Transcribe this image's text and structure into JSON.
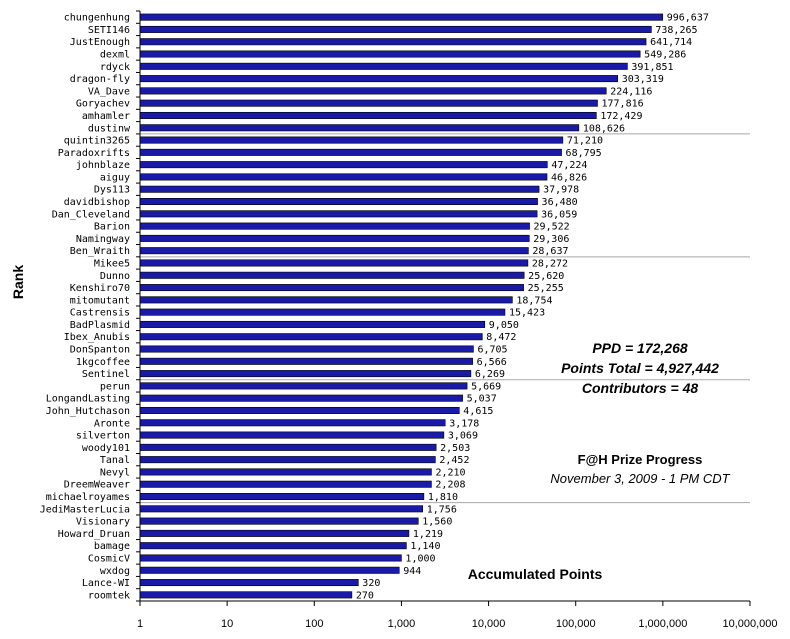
{
  "chart_data": {
    "type": "bar",
    "orientation": "horizontal",
    "title": "F@H Prize Progress",
    "subtitle": "November 3, 2009 - 1 PM CDT",
    "xlabel": "Accumulated Points",
    "ylabel": "Rank",
    "x_scale": "log",
    "xlim": [
      1,
      10000000
    ],
    "x_ticks": [
      1,
      10,
      100,
      1000,
      10000,
      100000,
      1000000,
      10000000
    ],
    "x_tick_labels": [
      "1",
      "10",
      "100",
      "1,000",
      "10,000",
      "100,000",
      "1,000,000",
      "10,000,000"
    ],
    "grid": "horizontal every 10 categories",
    "bar_color": "#1a1aa8",
    "categories": [
      "chungenhung",
      "SETI146",
      "JustEnough",
      "dexml",
      "rdyck",
      "dragon-fly",
      "VA_Dave",
      "Goryachev",
      "amhamler",
      "dustinw",
      "quintin3265",
      "Paradoxrifts",
      "johnblaze",
      "aiguy",
      "Dys113",
      "davidbishop",
      "Dan_Cleveland",
      "Barion",
      "Namingway",
      "Ben_Wraith",
      "Mikee5",
      "Dunno",
      "Kenshiro70",
      "mitomutant",
      "Castrensis",
      "BadPlasmid",
      "Ibex_Anubis",
      "DonSpanton",
      "1kgcoffee",
      "Sentinel",
      "perun",
      "LongandLasting",
      "John_Hutchason",
      "Aronte",
      "silverton",
      "woody101",
      "Tanal",
      "Nevyl",
      "DreemWeaver",
      "michaelroyames",
      "JediMasterLucia",
      "Visionary",
      "Howard_Druan",
      "bamage",
      "CosmicV",
      "wxdog",
      "Lance-WI",
      "roomtek"
    ],
    "values": [
      996637,
      738265,
      641714,
      549286,
      391851,
      303319,
      224116,
      177816,
      172429,
      108626,
      71210,
      68795,
      47224,
      46826,
      37978,
      36480,
      36059,
      29522,
      29306,
      28637,
      28272,
      25620,
      25255,
      18754,
      15423,
      9050,
      8472,
      6705,
      6566,
      6269,
      5669,
      5037,
      4615,
      3178,
      3069,
      2503,
      2452,
      2210,
      2208,
      1810,
      1756,
      1560,
      1219,
      1140,
      1000,
      944,
      320,
      270
    ],
    "value_labels": [
      "996,637",
      "738,265",
      "641,714",
      "549,286",
      "391,851",
      "303,319",
      "224,116",
      "177,816",
      "172,429",
      "108,626",
      "71,210",
      "68,795",
      "47,224",
      "46,826",
      "37,978",
      "36,480",
      "36,059",
      "29,522",
      "29,306",
      "28,637",
      "28,272",
      "25,620",
      "25,255",
      "18,754",
      "15,423",
      "9,050",
      "8,472",
      "6,705",
      "6,566",
      "6,269",
      "5,669",
      "5,037",
      "4,615",
      "3,178",
      "3,069",
      "2,503",
      "2,452",
      "2,210",
      "2,208",
      "1,810",
      "1,756",
      "1,560",
      "1,219",
      "1,140",
      "1,000",
      "944",
      "320",
      "270"
    ]
  },
  "stats": {
    "ppd": "PPD = 172,268",
    "points_total": "Points Total = 4,927,442",
    "contributors": "Contributors = 48"
  }
}
